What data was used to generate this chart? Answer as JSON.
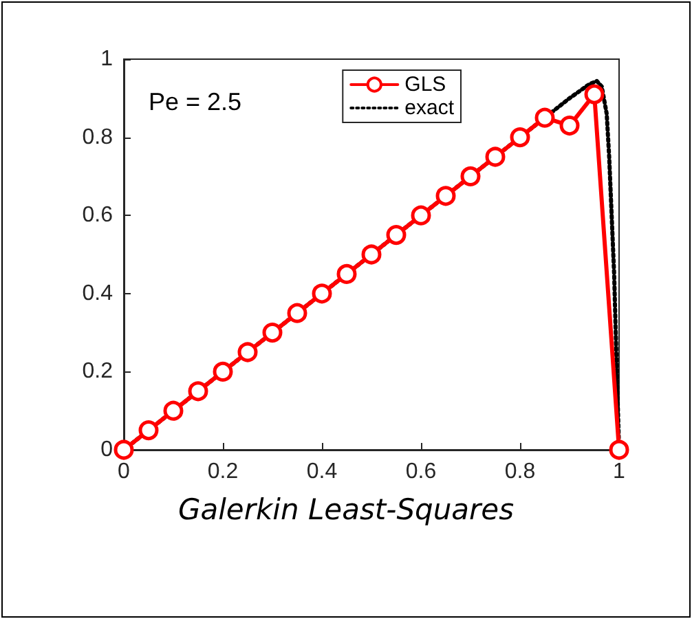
{
  "chart_data": {
    "type": "line",
    "annotations": [
      "Pe = 2.5",
      "Galerkin Least-Squares"
    ],
    "xlim": [
      0,
      1
    ],
    "xticks": [
      0,
      0.2,
      0.4,
      0.6,
      0.8,
      1
    ],
    "ylim": [
      0,
      1
    ],
    "yticks": [
      0,
      0.2,
      0.4,
      0.6,
      0.8,
      1
    ],
    "grid": false,
    "legend": "top right",
    "series": [
      {
        "name": "GLS",
        "color": "#ff0000",
        "marker": "circle",
        "line_style": "solid",
        "x": [
          0,
          0.05,
          0.1,
          0.15,
          0.2,
          0.25,
          0.3,
          0.35,
          0.4,
          0.45,
          0.5,
          0.55,
          0.6,
          0.65,
          0.7,
          0.75,
          0.8,
          0.85,
          0.9,
          0.95,
          1
        ],
        "values": [
          0,
          0.05,
          0.1,
          0.15,
          0.2,
          0.25,
          0.3,
          0.35,
          0.4,
          0.45,
          0.5,
          0.55,
          0.6,
          0.65,
          0.7,
          0.75,
          0.8,
          0.85,
          0.83,
          0.91,
          0
        ]
      },
      {
        "name": "exact",
        "color": "#000000",
        "marker": "none",
        "line_style": "dotted",
        "x": [
          0,
          0.9,
          0.92,
          0.94,
          0.955,
          0.965,
          0.975,
          0.98,
          0.985,
          0.99,
          0.995,
          1
        ],
        "values": [
          0,
          0.9,
          0.918,
          0.936,
          0.944,
          0.93,
          0.86,
          0.75,
          0.6,
          0.45,
          0.22,
          0
        ]
      }
    ]
  }
}
